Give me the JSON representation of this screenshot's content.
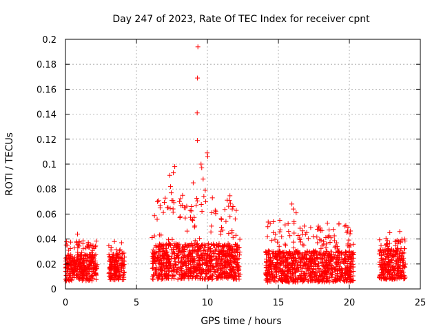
{
  "chart_data": {
    "type": "scatter",
    "title": "Day 247 of 2023, Rate Of TEC Index for receiver cpnt",
    "xlabel": "GPS time / hours",
    "ylabel": "ROTI / TECUs",
    "xlim": [
      0,
      25
    ],
    "ylim": [
      0,
      0.2
    ],
    "xticks": [
      0,
      5,
      10,
      15,
      20,
      25
    ],
    "yticks": [
      0,
      0.02,
      0.04,
      0.06,
      0.08,
      0.1,
      0.12,
      0.14,
      0.16,
      0.18,
      0.2
    ],
    "grid": true,
    "marker": "+",
    "series_color": "#ff0000",
    "segments": [
      {
        "start": 0.0,
        "end": 2.25,
        "base": 0.017,
        "spread": 0.012,
        "peak": 0.045
      },
      {
        "start": 3.05,
        "end": 4.15,
        "base": 0.018,
        "spread": 0.012,
        "peak": 0.038
      },
      {
        "start": 6.1,
        "end": 12.3,
        "base": 0.022,
        "spread": 0.016,
        "peak": 0.1
      },
      {
        "start": 14.1,
        "end": 20.3,
        "base": 0.018,
        "spread": 0.014,
        "peak": 0.069
      },
      {
        "start": 22.1,
        "end": 23.95,
        "base": 0.02,
        "spread": 0.014,
        "peak": 0.046
      }
    ],
    "outliers": [
      {
        "x": 9.33,
        "y": 0.194
      },
      {
        "x": 9.3,
        "y": 0.169
      },
      {
        "x": 9.28,
        "y": 0.141
      },
      {
        "x": 9.3,
        "y": 0.119
      },
      {
        "x": 9.98,
        "y": 0.109
      },
      {
        "x": 10.02,
        "y": 0.106
      },
      {
        "x": 9.55,
        "y": 0.1
      },
      {
        "x": 9.6,
        "y": 0.097
      },
      {
        "x": 7.7,
        "y": 0.098
      },
      {
        "x": 7.6,
        "y": 0.093
      },
      {
        "x": 7.35,
        "y": 0.091
      },
      {
        "x": 7.4,
        "y": 0.082
      },
      {
        "x": 7.45,
        "y": 0.077
      },
      {
        "x": 7.5,
        "y": 0.071
      },
      {
        "x": 8.25,
        "y": 0.075
      },
      {
        "x": 8.45,
        "y": 0.065
      },
      {
        "x": 9.0,
        "y": 0.085
      },
      {
        "x": 9.7,
        "y": 0.088
      },
      {
        "x": 9.85,
        "y": 0.079
      },
      {
        "x": 10.35,
        "y": 0.073
      },
      {
        "x": 10.55,
        "y": 0.063
      },
      {
        "x": 11.55,
        "y": 0.071
      },
      {
        "x": 11.75,
        "y": 0.064
      },
      {
        "x": 15.95,
        "y": 0.068
      },
      {
        "x": 16.05,
        "y": 0.064
      },
      {
        "x": 16.25,
        "y": 0.061
      },
      {
        "x": 16.1,
        "y": 0.054
      },
      {
        "x": 15.1,
        "y": 0.055
      },
      {
        "x": 17.45,
        "y": 0.042
      },
      {
        "x": 18.7,
        "y": 0.041
      },
      {
        "x": 19.9,
        "y": 0.036
      },
      {
        "x": 22.85,
        "y": 0.045
      },
      {
        "x": 23.55,
        "y": 0.046
      },
      {
        "x": 0.85,
        "y": 0.044
      },
      {
        "x": 3.45,
        "y": 0.038
      },
      {
        "x": 3.95,
        "y": 0.037
      }
    ]
  }
}
